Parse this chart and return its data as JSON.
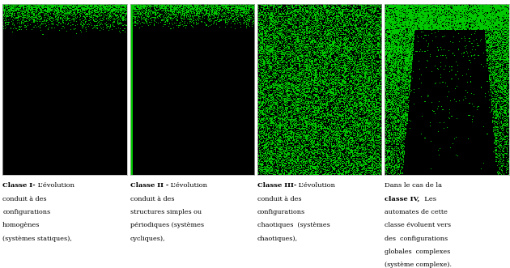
{
  "background_color": "#ffffff",
  "fig_width": 6.3,
  "fig_height": 3.31,
  "dpi": 100,
  "n_panels": 4,
  "seed": 123,
  "panels": [
    {
      "title_bold": "Classe I-",
      "title_normal": " L’évolution",
      "body": "conduit à des\nconfigurations\nhomogènes\n(systèmes statiques),"
    },
    {
      "title_bold": "Classe II -",
      "title_normal": " L’évolution",
      "body": "conduit à des\nstructures simples ou\npériodiques (systèmes\ncycliques),"
    },
    {
      "title_bold": "Classe III-",
      "title_normal": " L’évolution",
      "body": "conduit à des\nconfigurations\nchaotiques  (systèmes\nchaotiques),"
    },
    {
      "title_bold": "",
      "title_normal": "Dans le cas de la",
      "body_line1_bold": "classe IV,",
      "body_line1_normal": "  Les",
      "body_rest": "automates de cette\nclasse évoluent vers\ndes  configurations\nglobales  complexes\n(système complexe)."
    }
  ]
}
